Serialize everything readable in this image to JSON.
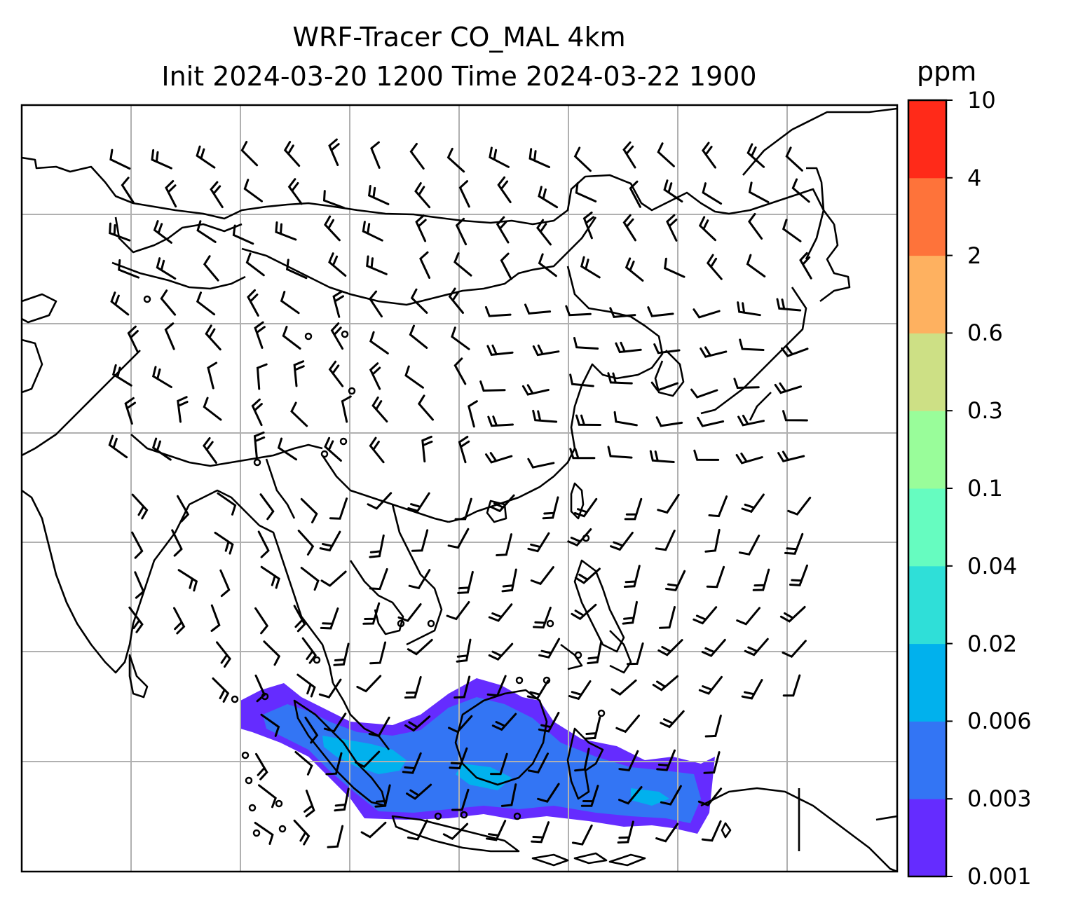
{
  "title_line1": "WRF-Tracer CO_MAL 4km",
  "title_line2": "Init 2024-03-20 1200 Time 2024-03-22 1900",
  "colorbar": {
    "unit": "ppm",
    "levels": [
      "0.001",
      "0.003",
      "0.006",
      "0.02",
      "0.04",
      "0.1",
      "0.3",
      "0.6",
      "2",
      "4",
      "10"
    ],
    "colors": [
      "#652cff",
      "#3375f4",
      "#01b1ed",
      "#2fdfd8",
      "#66fcc0",
      "#99fd9a",
      "#cde085",
      "#feb160",
      "#fe733a",
      "#ff2a19"
    ]
  },
  "map": {
    "frame_color": "#000000",
    "grid_color": "#b0b0b0",
    "coastline_color": "#000000",
    "wind_barb_color": "#000000",
    "plume_levels_present": [
      "0.001",
      "0.003",
      "0.006"
    ]
  }
}
